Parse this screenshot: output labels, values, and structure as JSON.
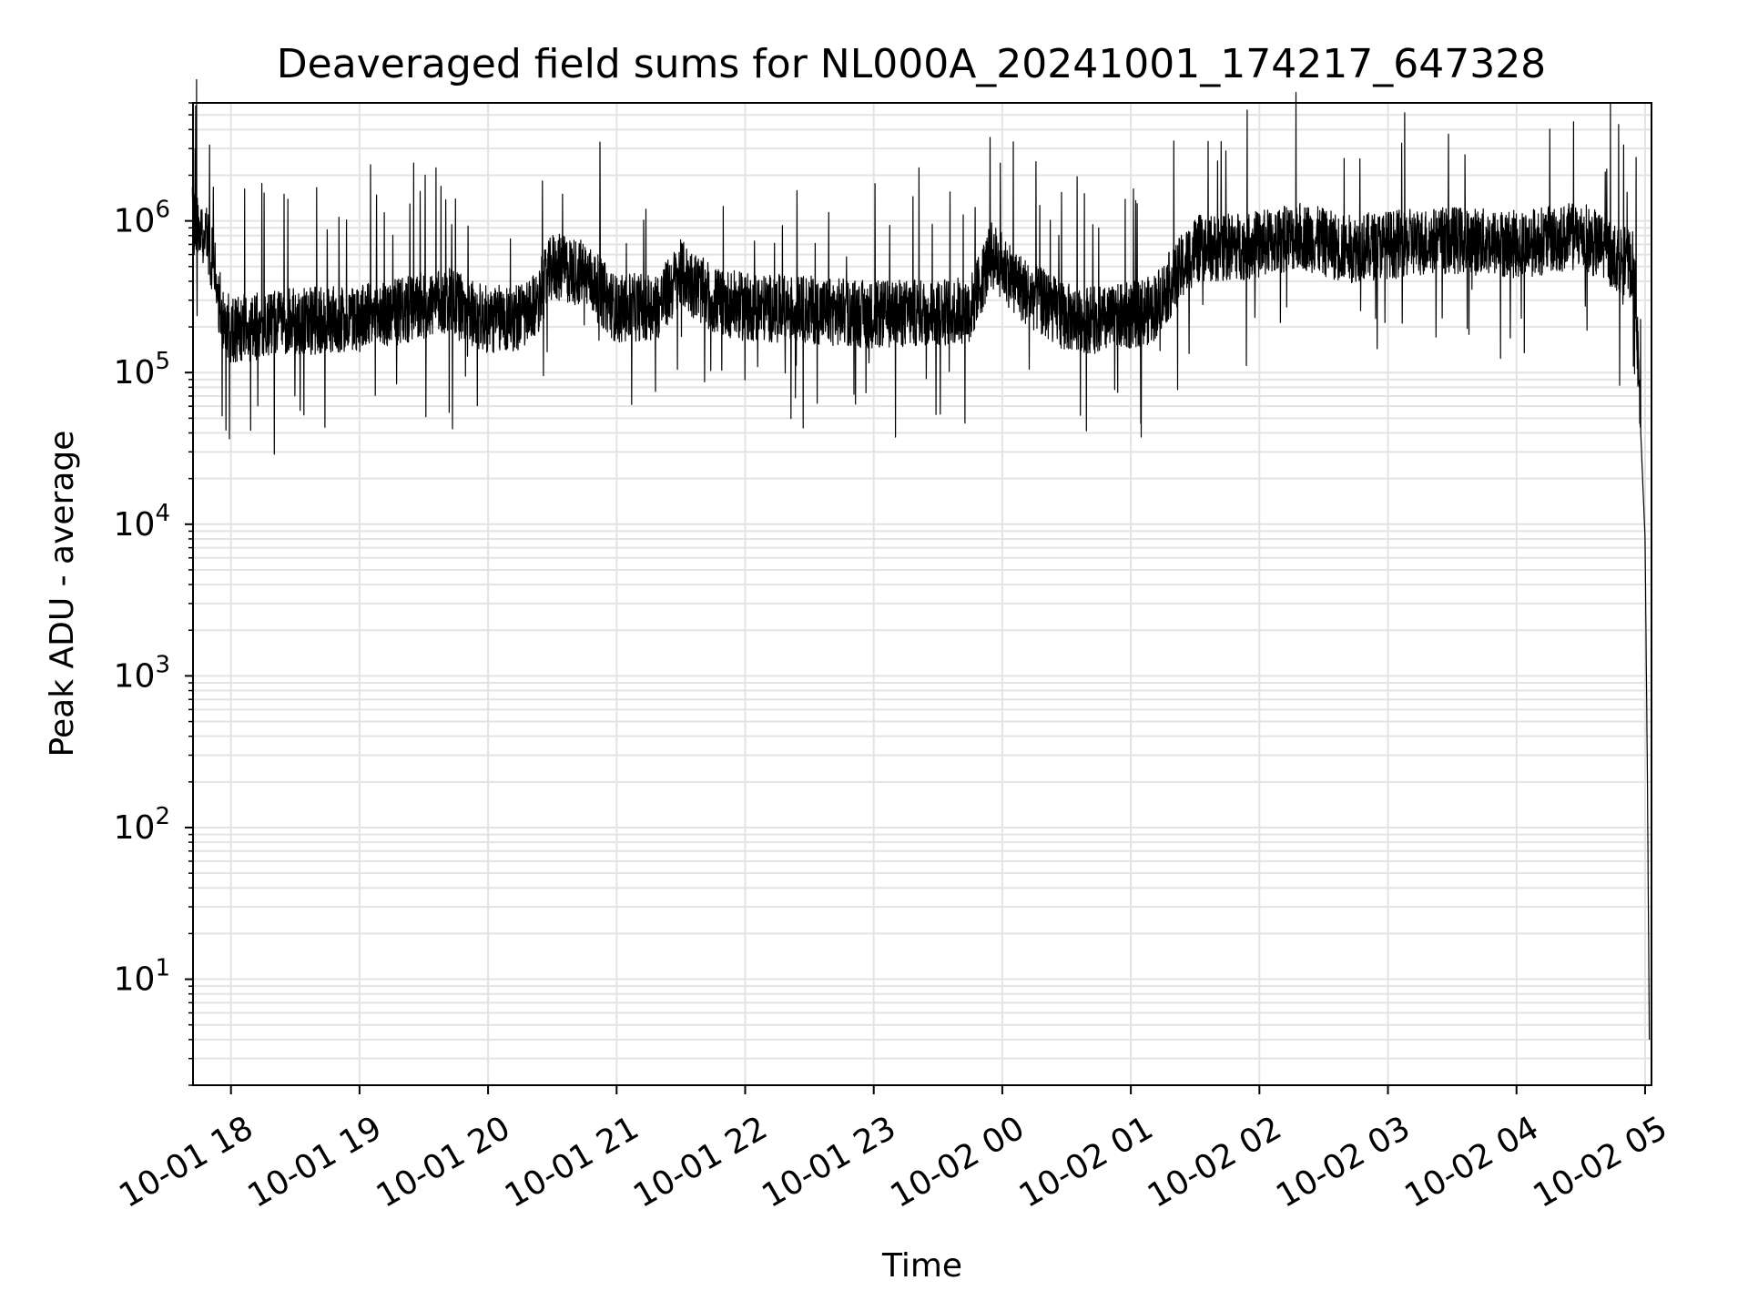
{
  "chart_data": {
    "type": "line",
    "title": "Deaveraged field sums for NL000A_20241001_174217_647328",
    "xlabel": "Time",
    "ylabel": "Peak ADU - average",
    "yscale": "log",
    "ylim": [
      2,
      6000000
    ],
    "xlim": [
      "2024-10-01 17:42:17",
      "2024-10-02 05:03:00"
    ],
    "x_ticks": [
      "2024-10-01 18:00",
      "2024-10-01 19:00",
      "2024-10-01 20:00",
      "2024-10-01 21:00",
      "2024-10-01 22:00",
      "2024-10-01 23:00",
      "2024-10-02 00:00",
      "2024-10-02 01:00",
      "2024-10-02 02:00",
      "2024-10-02 03:00",
      "2024-10-02 04:00",
      "2024-10-02 05:00"
    ],
    "x_tick_labels": [
      "10-01 18",
      "10-01 19",
      "10-01 20",
      "10-01 21",
      "10-01 22",
      "10-01 23",
      "10-02 00",
      "10-02 01",
      "10-02 02",
      "10-02 03",
      "10-02 04",
      "10-02 05"
    ],
    "y_ticks": [
      10,
      100,
      1000,
      10000,
      100000,
      1000000
    ],
    "y_tick_labels": [
      {
        "base": "10",
        "exp": "1"
      },
      {
        "base": "10",
        "exp": "2"
      },
      {
        "base": "10",
        "exp": "3"
      },
      {
        "base": "10",
        "exp": "4"
      },
      {
        "base": "10",
        "exp": "5"
      },
      {
        "base": "10",
        "exp": "6"
      }
    ],
    "grid": true,
    "line_color": "#000000",
    "grid_color": "#e3e3e3",
    "series": [
      {
        "x": [
          "2024-10-01 17:42",
          "2024-10-01 17:45",
          "2024-10-01 17:48",
          "2024-10-01 17:52",
          "2024-10-01 17:56",
          "2024-10-01 18:00",
          "2024-10-01 18:10",
          "2024-10-01 18:20",
          "2024-10-01 18:40",
          "2024-10-01 19:00",
          "2024-10-01 19:20",
          "2024-10-01 19:40",
          "2024-10-01 20:00",
          "2024-10-01 20:20",
          "2024-10-01 20:30",
          "2024-10-01 20:45",
          "2024-10-01 21:00",
          "2024-10-01 21:20",
          "2024-10-01 21:30",
          "2024-10-01 21:45",
          "2024-10-01 22:00",
          "2024-10-01 22:30",
          "2024-10-01 23:00",
          "2024-10-01 23:30",
          "2024-10-01 23:45",
          "2024-10-01 23:55",
          "2024-10-02 00:10",
          "2024-10-02 00:30",
          "2024-10-02 00:50",
          "2024-10-02 01:10",
          "2024-10-02 01:30",
          "2024-10-02 02:00",
          "2024-10-02 02:20",
          "2024-10-02 02:40",
          "2024-10-02 03:00",
          "2024-10-02 03:30",
          "2024-10-02 04:00",
          "2024-10-02 04:30",
          "2024-10-02 04:45",
          "2024-10-02 04:55",
          "2024-10-02 04:58",
          "2024-10-02 05:00",
          "2024-10-02 05:01",
          "2024-10-02 05:02"
        ],
        "y": [
          1000000,
          900000,
          850000,
          500000,
          220000,
          190000,
          200000,
          210000,
          220000,
          230000,
          250000,
          300000,
          220000,
          240000,
          500000,
          450000,
          260000,
          280000,
          450000,
          300000,
          270000,
          260000,
          240000,
          250000,
          260000,
          600000,
          350000,
          230000,
          220000,
          260000,
          650000,
          700000,
          800000,
          650000,
          700000,
          750000,
          700000,
          800000,
          600000,
          500000,
          40000,
          8000,
          300,
          4
        ]
      }
    ]
  }
}
